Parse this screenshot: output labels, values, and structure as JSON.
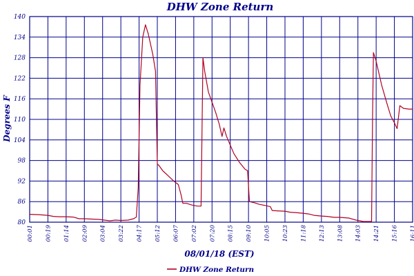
{
  "chart_data": {
    "type": "line",
    "title": "DHW Zone Return",
    "xlabel": "08/01/18 (EST)",
    "ylabel": "Degrees F",
    "ylim": [
      80,
      140
    ],
    "yticks": [
      "80",
      "86",
      "92",
      "98",
      "104",
      "110",
      "116",
      "122",
      "128",
      "134",
      "140"
    ],
    "xticks": [
      "00:01",
      "00:19",
      "01:14",
      "02:09",
      "03:04",
      "03:22",
      "04:17",
      "05:12",
      "06:07",
      "07:02",
      "07:20",
      "08:15",
      "09:10",
      "10:05",
      "10:23",
      "11:18",
      "12:13",
      "13:08",
      "14:03",
      "14:21",
      "15:16",
      "16:11"
    ],
    "grid": true,
    "legend_position": "bottom-center",
    "series": [
      {
        "name": "DHW Zone Return",
        "color": "#b00020",
        "points": [
          [
            0.0,
            82.3
          ],
          [
            0.5,
            82.2
          ],
          [
            1.0,
            82.0
          ],
          [
            1.3,
            81.7
          ],
          [
            1.6,
            81.6
          ],
          [
            2.0,
            81.6
          ],
          [
            2.4,
            81.5
          ],
          [
            2.7,
            81.0
          ],
          [
            3.0,
            81.0
          ],
          [
            3.4,
            80.9
          ],
          [
            3.8,
            80.8
          ],
          [
            4.1,
            80.6
          ],
          [
            4.4,
            80.4
          ],
          [
            4.7,
            80.6
          ],
          [
            5.0,
            80.5
          ],
          [
            5.4,
            80.6
          ],
          [
            5.7,
            81.0
          ],
          [
            5.85,
            81.5
          ],
          [
            5.95,
            90.0
          ],
          [
            6.05,
            120.0
          ],
          [
            6.2,
            134.0
          ],
          [
            6.35,
            137.6
          ],
          [
            6.5,
            135.0
          ],
          [
            6.75,
            129.0
          ],
          [
            6.9,
            124.0
          ],
          [
            7.0,
            97.0
          ],
          [
            7.1,
            96.5
          ],
          [
            7.3,
            95.0
          ],
          [
            7.6,
            93.5
          ],
          [
            7.9,
            92.0
          ],
          [
            8.15,
            91.0
          ],
          [
            8.3,
            88.0
          ],
          [
            8.4,
            85.5
          ],
          [
            8.6,
            85.5
          ],
          [
            8.9,
            85.0
          ],
          [
            9.2,
            84.7
          ],
          [
            9.4,
            84.7
          ],
          [
            9.45,
            107.0
          ],
          [
            9.5,
            128.0
          ],
          [
            9.6,
            124.0
          ],
          [
            9.8,
            118.0
          ],
          [
            10.0,
            115.0
          ],
          [
            10.2,
            112.0
          ],
          [
            10.4,
            108.5
          ],
          [
            10.55,
            105.0
          ],
          [
            10.65,
            107.5
          ],
          [
            10.8,
            105.0
          ],
          [
            11.0,
            102.5
          ],
          [
            11.2,
            100.0
          ],
          [
            11.5,
            97.5
          ],
          [
            11.8,
            95.5
          ],
          [
            11.95,
            95.0
          ],
          [
            12.05,
            86.0
          ],
          [
            12.3,
            85.7
          ],
          [
            12.6,
            85.2
          ],
          [
            12.9,
            84.9
          ],
          [
            13.2,
            84.5
          ],
          [
            13.3,
            83.4
          ],
          [
            13.6,
            83.3
          ],
          [
            14.0,
            83.2
          ],
          [
            14.3,
            82.9
          ],
          [
            14.6,
            82.8
          ],
          [
            15.0,
            82.6
          ],
          [
            15.3,
            82.4
          ],
          [
            15.6,
            82.0
          ],
          [
            16.0,
            81.8
          ],
          [
            16.3,
            81.7
          ],
          [
            16.7,
            81.4
          ],
          [
            17.0,
            81.4
          ],
          [
            17.5,
            81.2
          ],
          [
            17.9,
            80.6
          ],
          [
            18.3,
            80.2
          ],
          [
            18.6,
            80.2
          ],
          [
            18.75,
            80.2
          ],
          [
            18.8,
            110.0
          ],
          [
            18.85,
            129.5
          ],
          [
            19.0,
            127.0
          ],
          [
            19.3,
            120.0
          ],
          [
            19.6,
            114.5
          ],
          [
            19.8,
            111.0
          ],
          [
            20.0,
            109.0
          ],
          [
            20.15,
            107.3
          ],
          [
            20.3,
            114.0
          ],
          [
            20.5,
            113.2
          ],
          [
            20.8,
            113.0
          ],
          [
            21.0,
            113.0
          ]
        ]
      }
    ]
  }
}
